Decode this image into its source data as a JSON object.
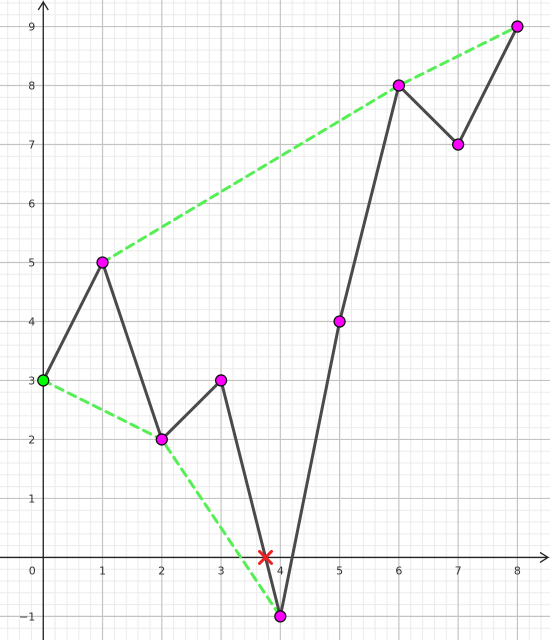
{
  "chart_data": {
    "type": "line",
    "title": "",
    "xlabel": "",
    "ylabel": "",
    "xlim": [
      -0.73,
      8.55
    ],
    "ylim": [
      -1.4,
      9.45
    ],
    "grid": true,
    "minor_grid_divisions": 5,
    "x_ticks": [
      "0",
      "1",
      "2",
      "3",
      "4",
      "5",
      "6",
      "7",
      "8"
    ],
    "y_ticks": [
      "−1",
      "1",
      "2",
      "3",
      "4",
      "5",
      "6",
      "7",
      "8",
      "9"
    ],
    "y_tick_values": [
      -1,
      1,
      2,
      3,
      4,
      5,
      6,
      7,
      8,
      9
    ],
    "series": [
      {
        "x": [
          0,
          1,
          2,
          3,
          4,
          5,
          6,
          7,
          8
        ],
        "y": [
          3,
          5,
          2,
          3,
          -1,
          4,
          8,
          7,
          9
        ],
        "color": "#4a4a4a",
        "style": "solid",
        "marker_color": "#ff00ff",
        "first_marker_color": "#00ff00"
      }
    ],
    "hull_lines": [
      {
        "x": [
          1,
          6,
          8
        ],
        "y": [
          5,
          8,
          9
        ],
        "color": "#55ee55",
        "style": "dashed"
      },
      {
        "x": [
          0,
          2,
          4
        ],
        "y": [
          3,
          2,
          -1
        ],
        "color": "#55ee55",
        "style": "dashed"
      }
    ],
    "annotations": [
      {
        "type": "cross",
        "x": 3.75,
        "y": 0,
        "color": "#ee2222"
      }
    ]
  }
}
